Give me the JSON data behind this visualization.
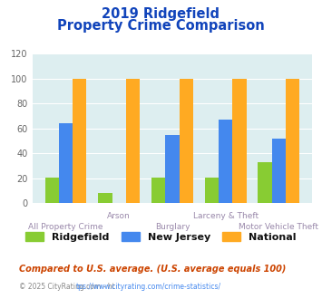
{
  "title_line1": "2019 Ridgefield",
  "title_line2": "Property Crime Comparison",
  "categories": [
    "All Property Crime",
    "Arson",
    "Burglary",
    "Larceny & Theft",
    "Motor Vehicle Theft"
  ],
  "ridgefield": [
    21,
    8,
    21,
    21,
    33
  ],
  "new_jersey": [
    64,
    0,
    55,
    67,
    52
  ],
  "national": [
    100,
    100,
    100,
    100,
    100
  ],
  "bar_color_ridgefield": "#88cc33",
  "bar_color_nj": "#4488ee",
  "bar_color_national": "#ffaa22",
  "ylim": [
    0,
    120
  ],
  "yticks": [
    0,
    20,
    40,
    60,
    80,
    100,
    120
  ],
  "bg_color": "#ddeef0",
  "title_color": "#1144bb",
  "xlabel_color": "#9988aa",
  "legend_label_ridgefield": "Ridgefield",
  "legend_label_nj": "New Jersey",
  "legend_label_national": "National",
  "footnote1": "Compared to U.S. average. (U.S. average equals 100)",
  "footnote2": "© 2025 CityRating.com - https://www.cityrating.com/crime-statistics/",
  "footnote1_color": "#cc4400",
  "footnote2_color": "#888888",
  "url_color": "#4488ee"
}
